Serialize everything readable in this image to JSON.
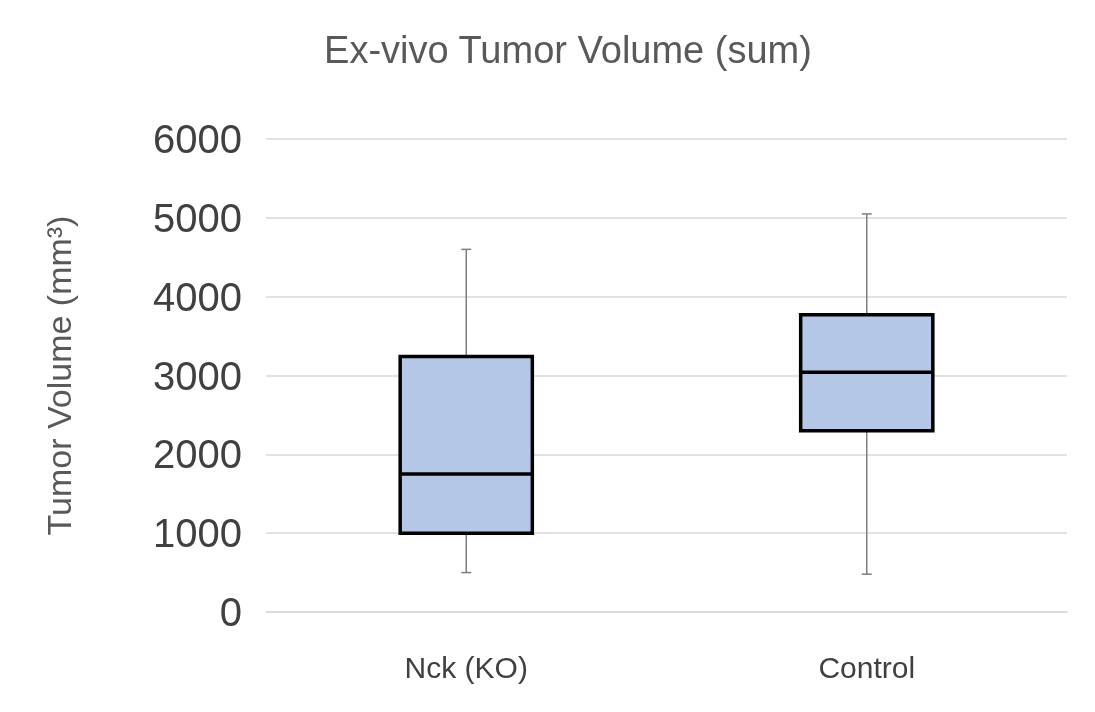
{
  "chart_data": {
    "type": "box",
    "title": "Ex-vivo Tumor Volume (sum)",
    "ylabel": "Tumor Volume (mm³)",
    "categories": [
      "Nck (KO)",
      "Control"
    ],
    "color": "#b4c7e7",
    "boxes": [
      {
        "low": 500,
        "q1": 1000,
        "median": 1750,
        "q3": 3240,
        "high": 4600
      },
      {
        "low": 480,
        "q1": 2300,
        "median": 3040,
        "q3": 3770,
        "high": 5050
      }
    ],
    "ylim": [
      0,
      6000
    ],
    "yticks": [
      0,
      1000,
      2000,
      3000,
      4000,
      5000,
      6000
    ],
    "grid": "y"
  }
}
